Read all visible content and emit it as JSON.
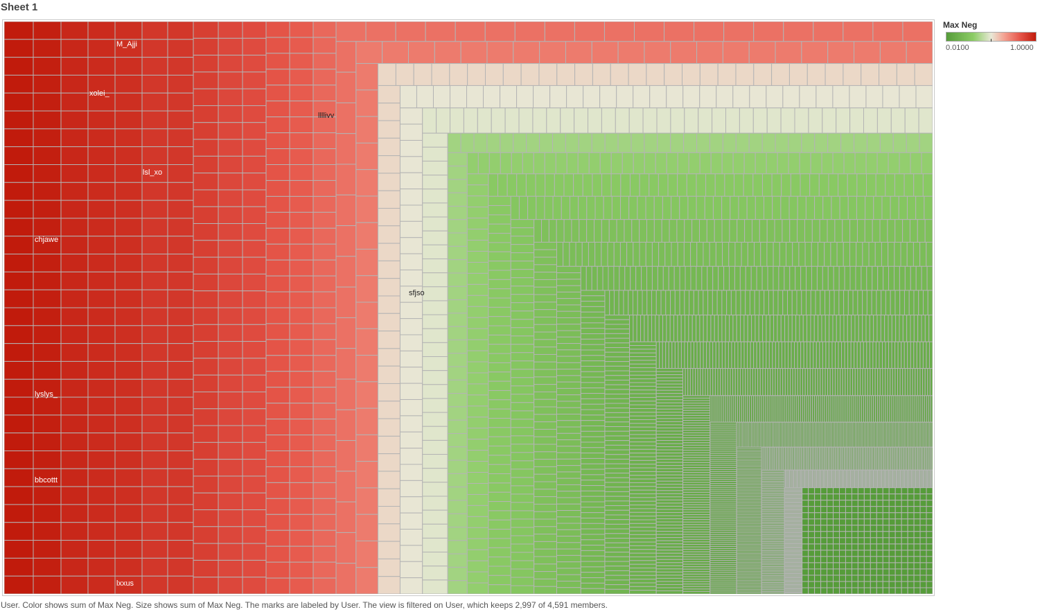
{
  "sheet": {
    "title": "Sheet 1"
  },
  "legend": {
    "title": "Max Neg",
    "min_label": "0.0100",
    "max_label": "1.0000"
  },
  "caption": "User.  Color shows sum of Max Neg.  Size shows sum of Max Neg.  The marks are labeled by User. The view is filtered on User, which keeps 2,997 of 4,591 members.",
  "colors": {
    "high": "#c11b0c",
    "mid_red": "#f4a090",
    "mid": "#e8e8d6",
    "mid_green": "#8ccc66",
    "low": "#569c3a",
    "cell_border": "#b4b4b4"
  },
  "chart_data": {
    "type": "treemap",
    "size_measure": "Max Neg",
    "color_measure": "Max Neg",
    "label_field": "User",
    "color_range": [
      0.01,
      1.0
    ],
    "filter": {
      "kept": 2997,
      "total": 4591
    },
    "labeled_marks": [
      {
        "user": "chjawe",
        "value": 0.99
      },
      {
        "user": "lyslys_",
        "value": 0.99
      },
      {
        "user": "bbcottt",
        "value": 0.99
      },
      {
        "user": "xolei_",
        "value": 0.96
      },
      {
        "user": "M_Ajji",
        "value": 0.95
      },
      {
        "user": "lxxus",
        "value": 0.95
      },
      {
        "user": "lsl_xo",
        "value": 0.93
      },
      {
        "user": "llllivv",
        "value": 0.86
      },
      {
        "user": "sfjso",
        "value": 0.45
      }
    ],
    "column_groups": [
      {
        "value": 1.0,
        "columns": 1,
        "rows": 32
      },
      {
        "value": 0.99,
        "columns": 1,
        "rows": 32
      },
      {
        "value": 0.97,
        "columns": 1,
        "rows": 32
      },
      {
        "value": 0.96,
        "columns": 1,
        "rows": 32
      },
      {
        "value": 0.95,
        "columns": 1,
        "rows": 32
      },
      {
        "value": 0.93,
        "columns": 2,
        "rows": 32
      },
      {
        "value": 0.91,
        "columns": 1,
        "rows": 34
      },
      {
        "value": 0.89,
        "columns": 1,
        "rows": 34
      },
      {
        "value": 0.88,
        "columns": 1,
        "rows": 34
      },
      {
        "value": 0.86,
        "columns": 1,
        "rows": 36
      },
      {
        "value": 0.84,
        "columns": 1,
        "rows": 36
      },
      {
        "value": 0.8,
        "columns": 1,
        "rows": 36
      }
    ],
    "remaining_groups": [
      {
        "value": 0.77,
        "count": 38
      },
      {
        "value": 0.74,
        "count": 42
      },
      {
        "value": 0.5,
        "count": 60
      },
      {
        "value": 0.47,
        "count": 62
      },
      {
        "value": 0.45,
        "count": 70
      },
      {
        "value": 0.33,
        "count": 70
      },
      {
        "value": 0.3,
        "count": 80
      },
      {
        "value": 0.27,
        "count": 90
      },
      {
        "value": 0.25,
        "count": 95
      },
      {
        "value": 0.22,
        "count": 100
      },
      {
        "value": 0.2,
        "count": 110
      },
      {
        "value": 0.17,
        "count": 120
      },
      {
        "value": 0.15,
        "count": 130
      },
      {
        "value": 0.13,
        "count": 150
      },
      {
        "value": 0.11,
        "count": 160
      },
      {
        "value": 0.09,
        "count": 180
      },
      {
        "value": 0.07,
        "count": 200
      },
      {
        "value": 0.05,
        "count": 230
      },
      {
        "value": 0.035,
        "count": 260
      },
      {
        "value": 0.02,
        "count": 300
      },
      {
        "value": 0.01,
        "count": 360
      }
    ]
  }
}
